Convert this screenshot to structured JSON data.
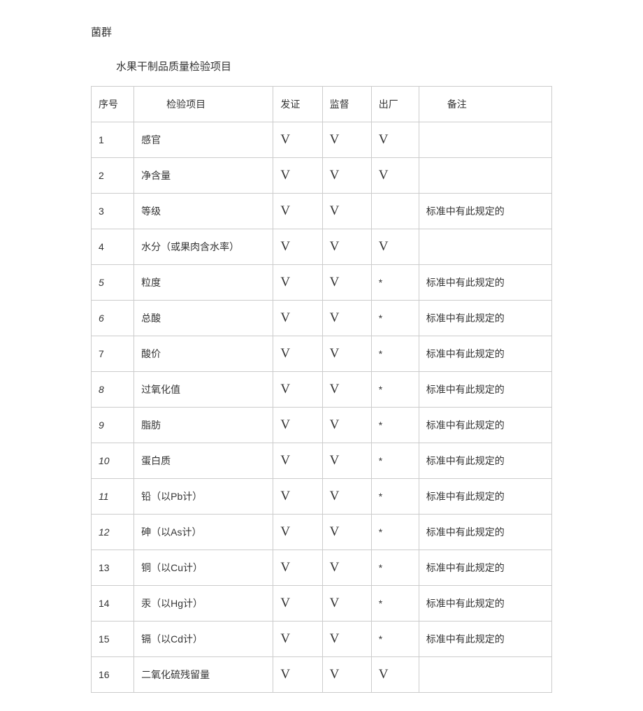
{
  "top_text": "菌群",
  "title": "水果干制品质量检验项目",
  "headers": {
    "seq": "序号",
    "item": "检验项目",
    "cert": "发证",
    "sup": "监督",
    "exit": "出厂",
    "note": "备注"
  },
  "check_mark": "V",
  "star_mark": "*",
  "note_standard": "标准中有此规定的",
  "rows": [
    {
      "seq": "1",
      "seq_italic": false,
      "item": "感官",
      "cert": "V",
      "sup": "V",
      "exit": "V",
      "note": ""
    },
    {
      "seq": "2",
      "seq_italic": false,
      "item": "净含量",
      "cert": "V",
      "sup": "V",
      "exit": "V",
      "note": ""
    },
    {
      "seq": "3",
      "seq_italic": false,
      "item": "等级",
      "cert": "V",
      "sup": "V",
      "exit": "",
      "note": "标准中有此规定的"
    },
    {
      "seq": "4",
      "seq_italic": false,
      "item": "水分（或果肉含水率）",
      "cert": "V",
      "sup": "V",
      "exit": "V",
      "note": ""
    },
    {
      "seq": "5",
      "seq_italic": true,
      "item": "粒度",
      "cert": "V",
      "sup": "V",
      "exit": "*",
      "note": "标准中有此规定的"
    },
    {
      "seq": "6",
      "seq_italic": true,
      "item": "总酸",
      "cert": "V",
      "sup": "V",
      "exit": "*",
      "note": "标准中有此规定的"
    },
    {
      "seq": "7",
      "seq_italic": false,
      "item": "酸价",
      "cert": "V",
      "sup": "V",
      "exit": "*",
      "note": "标准中有此规定的"
    },
    {
      "seq": "8",
      "seq_italic": true,
      "item": "过氧化值",
      "cert": "V",
      "sup": "V",
      "exit": "*",
      "note": "标准中有此规定的"
    },
    {
      "seq": "9",
      "seq_italic": true,
      "item": "脂肪",
      "cert": "V",
      "sup": "V",
      "exit": "*",
      "note": "标准中有此规定的"
    },
    {
      "seq": "10",
      "seq_italic": true,
      "item": "蛋白质",
      "cert": "V",
      "sup": "V",
      "exit": "*",
      "note": "标准中有此规定的"
    },
    {
      "seq": "11",
      "seq_italic": true,
      "item": "铅（以Pb计）",
      "cert": "V",
      "sup": "V",
      "exit": "*",
      "note": "标准中有此规定的"
    },
    {
      "seq": "12",
      "seq_italic": true,
      "item": "砷（以As计）",
      "cert": "V",
      "sup": "V",
      "exit": "*",
      "note": "标准中有此规定的"
    },
    {
      "seq": "13",
      "seq_italic": false,
      "item": "铜（以Cu计）",
      "cert": "V",
      "sup": "V",
      "exit": "*",
      "note": "标准中有此规定的"
    },
    {
      "seq": "14",
      "seq_italic": false,
      "item": "汞（以Hg计）",
      "cert": "V",
      "sup": "V",
      "exit": "*",
      "note": "标准中有此规定的"
    },
    {
      "seq": "15",
      "seq_italic": false,
      "item": "镉（以Cd计）",
      "cert": "V",
      "sup": "V",
      "exit": "*",
      "note": "标准中有此规定的"
    },
    {
      "seq": "16",
      "seq_italic": false,
      "item": "二氧化硫残留量",
      "cert": "V",
      "sup": "V",
      "exit": "V",
      "note": ""
    }
  ],
  "colors": {
    "background": "#ffffff",
    "text": "#333333",
    "border": "#cccccc"
  },
  "typography": {
    "body_fontsize": 14,
    "title_fontsize": 15,
    "check_fontsize": 19
  }
}
